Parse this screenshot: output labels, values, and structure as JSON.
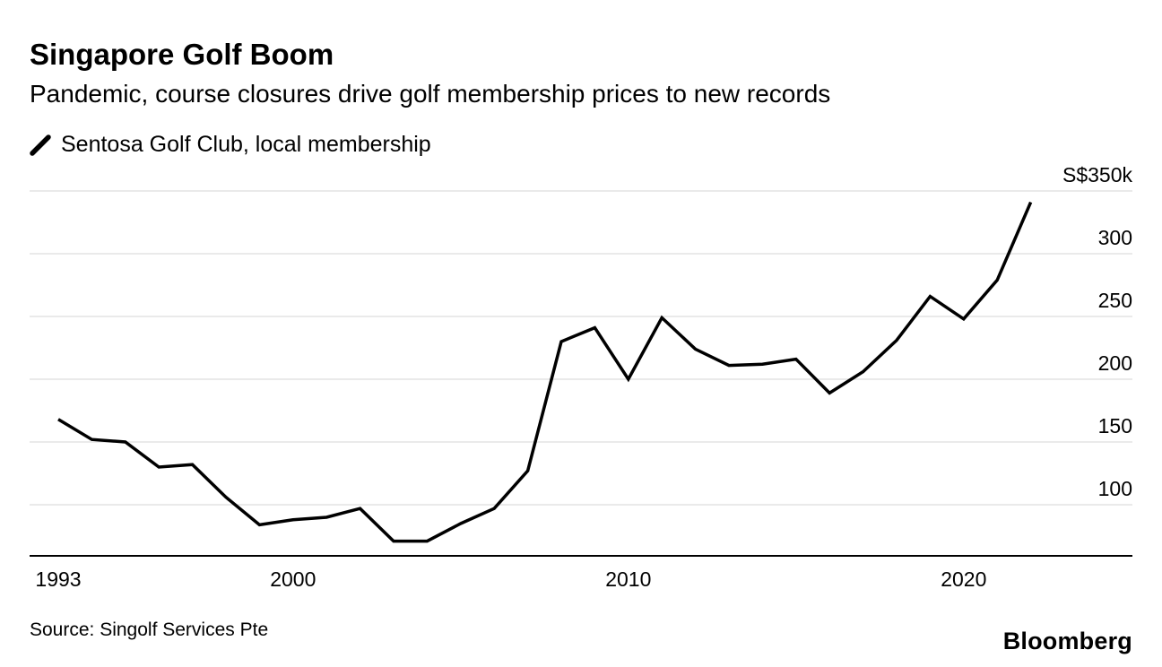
{
  "header": {
    "title": "Singapore Golf Boom",
    "subtitle": "Pandemic, course closures drive golf membership prices to new records"
  },
  "footer": {
    "source": "Source: Singolf Services Pte",
    "brand": "Bloomberg"
  },
  "chart_data": {
    "type": "line",
    "title": "Singapore Golf Boom",
    "subtitle": "Pandemic, course closures drive golf membership prices to new records",
    "source": "Source: Singolf Services Pte",
    "series": [
      {
        "name": "Sentosa Golf Club, local membership",
        "color": "#000000",
        "unit": "S$ thousand",
        "x": [
          1993,
          1994,
          1995,
          1996,
          1997,
          1998,
          1999,
          2000,
          2001,
          2002,
          2003,
          2004,
          2005,
          2006,
          2007,
          2008,
          2009,
          2010,
          2011,
          2012,
          2013,
          2014,
          2015,
          2016,
          2017,
          2018,
          2019,
          2020,
          2021,
          2022
        ],
        "values": [
          168,
          152,
          150,
          130,
          132,
          106,
          84,
          88,
          90,
          97,
          71,
          71,
          85,
          97,
          127,
          230,
          241,
          200,
          249,
          224,
          211,
          212,
          216,
          189,
          206,
          231,
          266,
          248,
          279,
          341
        ]
      }
    ],
    "x_ticks": [
      1993,
      2000,
      2010,
      2020
    ],
    "y_ticks": [
      {
        "value": 100,
        "label": "100"
      },
      {
        "value": 150,
        "label": "150"
      },
      {
        "value": 200,
        "label": "200"
      },
      {
        "value": 250,
        "label": "250"
      },
      {
        "value": 300,
        "label": "300"
      },
      {
        "value": 350,
        "label": "S$350k"
      }
    ],
    "xlim": [
      1992.1,
      2025
    ],
    "ylim": [
      59,
      350
    ],
    "grid": "horizontal",
    "legend_position": "top-left"
  }
}
